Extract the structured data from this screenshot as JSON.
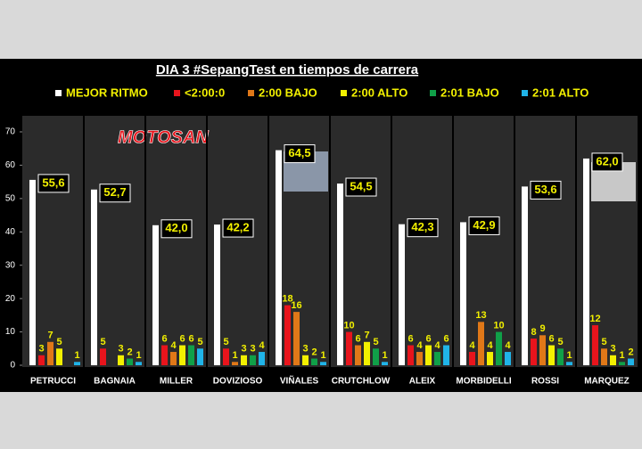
{
  "chart_data": {
    "type": "bar",
    "title": "DIA 3 #SepangTest en tiempos de carrera",
    "logo": "MOTOSAN",
    "categories": [
      "PETRUCCI",
      "BAGNAIA",
      "MILLER",
      "DOVIZIOSO",
      "VIÑALES",
      "CRUTCHLOW",
      "ALEIX",
      "MORBIDELLI",
      "ROSSI",
      "MARQUEZ"
    ],
    "series": [
      {
        "name": "MEJOR RITMO",
        "color": "#ffffff",
        "values": [
          55.6,
          52.7,
          42.0,
          42.2,
          64.5,
          54.5,
          42.3,
          42.9,
          53.6,
          62.0
        ],
        "value_labels": [
          "55,6",
          "52,7",
          "42,0",
          "42,2",
          "64,5",
          "54,5",
          "42,3",
          "42,9",
          "53,6",
          "62,0"
        ]
      },
      {
        "name": "<2:00:0",
        "color": "#e8141c",
        "values": [
          3,
          5,
          6,
          5,
          18,
          10,
          6,
          4,
          8,
          12
        ]
      },
      {
        "name": "2:00 BAJO",
        "color": "#e07818",
        "values": [
          7,
          null,
          4,
          1,
          16,
          6,
          4,
          13,
          9,
          5
        ]
      },
      {
        "name": "2:00 ALTO",
        "color": "#f2f000",
        "values": [
          5,
          3,
          6,
          3,
          3,
          7,
          6,
          4,
          6,
          3
        ]
      },
      {
        "name": "2:01 BAJO",
        "color": "#10a048",
        "values": [
          null,
          2,
          6,
          3,
          2,
          5,
          4,
          10,
          5,
          1
        ]
      },
      {
        "name": "2:01 ALTO",
        "color": "#20b4e8",
        "values": [
          1,
          1,
          5,
          4,
          1,
          1,
          6,
          4,
          1,
          2
        ]
      }
    ],
    "ylim": [
      0,
      70
    ],
    "yticks": [
      0,
      10,
      20,
      30,
      40,
      50,
      60,
      70
    ],
    "label_color": "#f2f000"
  }
}
